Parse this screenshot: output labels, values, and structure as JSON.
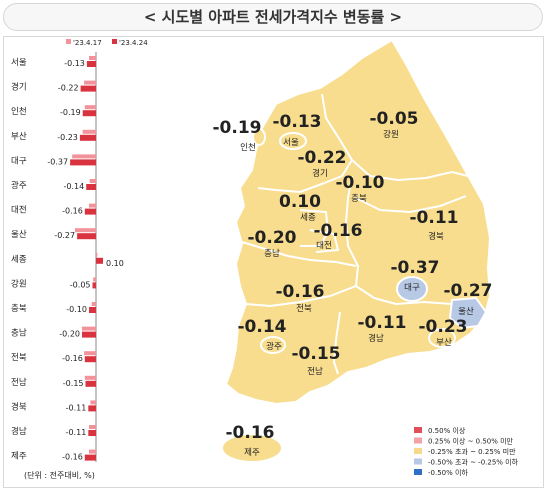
{
  "title": "< 시도별 아파트 전세가격지수 변동률 >",
  "chart_data": {
    "type": "bar",
    "orientation": "horizontal",
    "categories": [
      "서울",
      "경기",
      "인천",
      "부산",
      "대구",
      "광주",
      "대전",
      "울산",
      "세종",
      "강원",
      "충북",
      "충남",
      "전북",
      "전남",
      "경북",
      "경남",
      "제주"
    ],
    "series": [
      {
        "name": "'23.4.17",
        "color": "#f2939b",
        "values": [
          -0.1,
          -0.17,
          -0.16,
          -0.19,
          -0.34,
          -0.09,
          -0.1,
          -0.3,
          0.02,
          -0.04,
          -0.06,
          -0.2,
          -0.17,
          -0.16,
          -0.08,
          -0.1,
          -0.1
        ]
      },
      {
        "name": "'23.4.24",
        "color": "#d9333f",
        "values": [
          -0.13,
          -0.22,
          -0.19,
          -0.23,
          -0.37,
          -0.14,
          -0.16,
          -0.27,
          0.1,
          -0.05,
          -0.1,
          -0.2,
          -0.16,
          -0.15,
          -0.11,
          -0.11,
          -0.16
        ]
      }
    ],
    "value_labels": [
      "-0.13",
      "-0.22",
      "-0.19",
      "-0.23",
      "-0.37",
      "-0.14",
      "-0.16",
      "-0.27",
      "0.10",
      "-0.05",
      "-0.10",
      "-0.20",
      "-0.16",
      "-0.15",
      "-0.11",
      "-0.11",
      "-0.16"
    ],
    "footnote": "(단위 : 전주대비, %)",
    "legend_position": "top"
  },
  "map": {
    "regions": [
      {
        "name": "인천",
        "value": "-0.19"
      },
      {
        "name": "서울",
        "value": "-0.13"
      },
      {
        "name": "강원",
        "value": "-0.05"
      },
      {
        "name": "경기",
        "value": "-0.22"
      },
      {
        "name": "충북",
        "value": "-0.10"
      },
      {
        "name": "세종",
        "value": "0.10"
      },
      {
        "name": "대전",
        "value": "-0.16"
      },
      {
        "name": "충남",
        "value": "-0.20"
      },
      {
        "name": "경북",
        "value": "-0.11"
      },
      {
        "name": "대구",
        "value": "-0.37"
      },
      {
        "name": "울산",
        "value": "-0.27"
      },
      {
        "name": "전북",
        "value": "-0.16"
      },
      {
        "name": "광주",
        "value": "-0.14"
      },
      {
        "name": "경남",
        "value": "-0.11"
      },
      {
        "name": "부산",
        "value": "-0.23"
      },
      {
        "name": "전남",
        "value": "-0.15"
      },
      {
        "name": "제주",
        "value": "-0.16"
      }
    ],
    "legend": [
      {
        "label": "0.50% 이상",
        "color": "#e0505a"
      },
      {
        "label": "0.25% 이상 ~ 0.50% 미만",
        "color": "#f3a0a6"
      },
      {
        "label": "-0.25% 초과 ~ 0.25% 미만",
        "color": "#f6d98c"
      },
      {
        "label": "-0.50% 초과 ~ -0.25% 이하",
        "color": "#b8c9e6"
      },
      {
        "label": "-0.50% 이하",
        "color": "#2f6fc6"
      }
    ],
    "colors": {
      "mild": "#f8dd8e",
      "decline": "#b8c9e6",
      "outline": "#ffffff"
    }
  }
}
